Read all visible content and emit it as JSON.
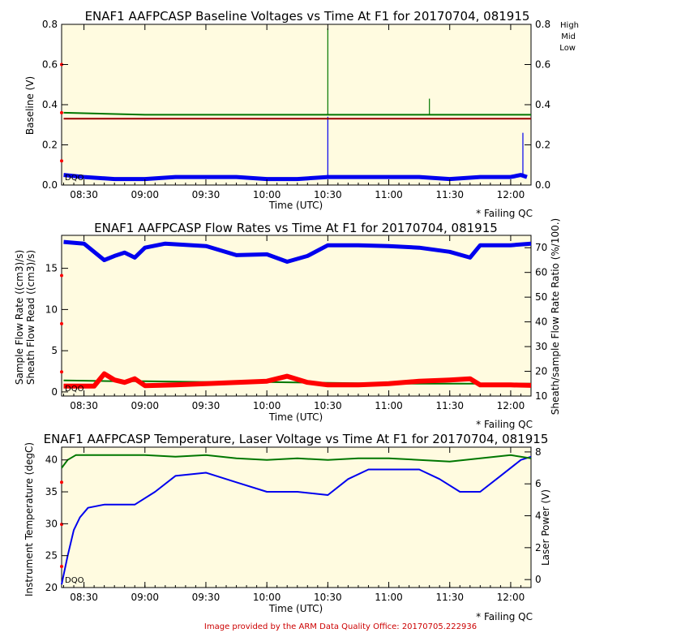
{
  "footer": "Image provided by the ARM Data Quality Office: 20170705.222936",
  "time_ticks": [
    "08:30",
    "09:00",
    "09:30",
    "10:00",
    "10:30",
    "11:00",
    "11:30",
    "12:00"
  ],
  "time_axis_label": "Time (UTC)",
  "failing_qc": "* Failing QC",
  "dqo": "DQO",
  "colors": {
    "high": "#0000ee",
    "mid": "#007700",
    "low": "#990000",
    "qc": "#ff0000",
    "background": "#fffbe0"
  },
  "chart_data": [
    {
      "type": "line",
      "title": "ENAF1 AAFPCASP Baseline Voltages vs Time At F1 for 20170704, 081915",
      "xlabel": "Time (UTC)",
      "ylabel": "Baseline (V)",
      "xlim": [
        "08:19",
        "12:10"
      ],
      "ylim": [
        0,
        0.8
      ],
      "y_ticks": [
        "0.0",
        "0.2",
        "0.4",
        "0.6",
        "0.8"
      ],
      "legend_placement": "right-top",
      "legend": [
        "High",
        "Mid",
        "Low"
      ],
      "series": [
        {
          "name": "High",
          "color": "#0000ee",
          "x": [
            "08:20",
            "08:30",
            "08:45",
            "09:00",
            "09:15",
            "09:30",
            "09:45",
            "10:00",
            "10:15",
            "10:30",
            "10:45",
            "11:00",
            "11:15",
            "11:30",
            "11:45",
            "12:00",
            "12:05",
            "12:08"
          ],
          "y": [
            0.05,
            0.04,
            0.03,
            0.03,
            0.04,
            0.04,
            0.04,
            0.03,
            0.03,
            0.04,
            0.04,
            0.04,
            0.04,
            0.03,
            0.04,
            0.04,
            0.05,
            0.04
          ],
          "spikes": [
            {
              "x": "10:30",
              "y": 0.34
            },
            {
              "x": "12:06",
              "y": 0.26
            }
          ]
        },
        {
          "name": "Mid",
          "color": "#007700",
          "x": [
            "08:20",
            "09:00",
            "10:00",
            "11:00",
            "12:00",
            "12:10"
          ],
          "y": [
            0.36,
            0.35,
            0.35,
            0.35,
            0.35,
            0.35
          ],
          "spikes": [
            {
              "x": "10:30",
              "y": 0.78
            },
            {
              "x": "11:20",
              "y": 0.43
            }
          ]
        },
        {
          "name": "Low",
          "color": "#990000",
          "x": [
            "08:20",
            "09:00",
            "10:00",
            "11:00",
            "12:00",
            "12:10"
          ],
          "y": [
            0.33,
            0.33,
            0.33,
            0.33,
            0.33,
            0.33
          ]
        }
      ]
    },
    {
      "type": "line",
      "title": "ENAF1 AAFPCASP Flow Rates vs Time At F1 for 20170704, 081915",
      "xlabel": "Time (UTC)",
      "ylabel_left": [
        "Sample Flow Rate ((cm3)/s)",
        "Sheath Flow Read ((cm3)/s)"
      ],
      "ylabel_right": "Sheath/sample Flow Rate Ratio (%/100.)",
      "xlim": [
        "08:19",
        "12:10"
      ],
      "ylim": [
        -0.5,
        19
      ],
      "ylim_right": [
        10,
        75
      ],
      "y_ticks": [
        "0",
        "5",
        "10",
        "15"
      ],
      "y_ticks_right": [
        "10",
        "20",
        "30",
        "40",
        "50",
        "60",
        "70"
      ],
      "series": [
        {
          "name": "Sheath Flow Read",
          "color": "#0000ee",
          "axis": "left",
          "x": [
            "08:20",
            "08:30",
            "08:40",
            "08:45",
            "08:50",
            "08:55",
            "09:00",
            "09:10",
            "09:30",
            "09:45",
            "10:00",
            "10:10",
            "10:20",
            "10:30",
            "10:45",
            "11:00",
            "11:15",
            "11:30",
            "11:40",
            "11:45",
            "12:00",
            "12:10"
          ],
          "y": [
            18.2,
            18.0,
            16.0,
            16.5,
            16.9,
            16.3,
            17.5,
            18.0,
            17.7,
            16.6,
            16.7,
            15.8,
            16.5,
            17.8,
            17.8,
            17.7,
            17.5,
            17.0,
            16.3,
            17.8,
            17.8,
            18.0
          ]
        },
        {
          "name": "Sample Flow Rate",
          "color": "#007700",
          "axis": "left",
          "x": [
            "08:20",
            "08:45",
            "09:00",
            "09:30",
            "10:00",
            "10:30",
            "11:00",
            "11:30",
            "12:00",
            "12:10"
          ],
          "y": [
            1.4,
            1.3,
            1.3,
            1.2,
            1.2,
            1.1,
            1.0,
            1.0,
            1.0,
            1.0
          ]
        },
        {
          "name": "Sheath/sample Flow Rate Ratio",
          "color": "#990000",
          "axis": "right",
          "x": [
            "08:20",
            "08:30",
            "08:35",
            "08:40",
            "08:45",
            "08:50",
            "08:55",
            "09:00",
            "09:15",
            "09:30",
            "09:45",
            "10:00",
            "10:10",
            "10:20",
            "10:30",
            "10:45",
            "11:00",
            "11:15",
            "11:30",
            "11:40",
            "11:45",
            "12:00",
            "12:10"
          ],
          "y": [
            14,
            14,
            14,
            19,
            16.5,
            15.5,
            17,
            14.2,
            14.5,
            15,
            15.5,
            16,
            18,
            15.5,
            14.5,
            14.5,
            15,
            16,
            16.5,
            17,
            14.5,
            14.5,
            14.3
          ]
        }
      ]
    },
    {
      "type": "line",
      "title": "ENAF1 AAFPCASP Temperature, Laser Voltage vs Time At F1 for 20170704, 081915",
      "xlabel": "Time (UTC)",
      "ylabel_left": "Instrument Temperature (degC)",
      "ylabel_right": "Laser Power (V)",
      "xlim": [
        "08:19",
        "12:10"
      ],
      "ylim": [
        20,
        42
      ],
      "ylim_right": [
        -0.5,
        8.3
      ],
      "y_ticks": [
        "20",
        "25",
        "30",
        "35",
        "40"
      ],
      "y_ticks_right": [
        "0",
        "2",
        "4",
        "6",
        "8"
      ],
      "series": [
        {
          "name": "Instrument Temperature",
          "color": "#0000ee",
          "axis": "left",
          "x": [
            "08:19",
            "08:22",
            "08:25",
            "08:28",
            "08:32",
            "08:40",
            "08:55",
            "09:05",
            "09:15",
            "09:30",
            "09:45",
            "10:00",
            "10:15",
            "10:30",
            "10:40",
            "10:50",
            "11:00",
            "11:15",
            "11:25",
            "11:35",
            "11:45",
            "11:55",
            "12:05",
            "12:10"
          ],
          "y": [
            20.5,
            25,
            29,
            31,
            32.5,
            33,
            33,
            35,
            37.5,
            38,
            36.5,
            35,
            35,
            34.5,
            37,
            38.5,
            38.5,
            38.5,
            37,
            35,
            35,
            37.5,
            40,
            40.5
          ]
        },
        {
          "name": "Laser Power",
          "color": "#007700",
          "axis": "right",
          "x": [
            "08:19",
            "08:22",
            "08:26",
            "08:35",
            "09:00",
            "09:15",
            "09:30",
            "09:45",
            "10:00",
            "10:15",
            "10:30",
            "10:45",
            "11:00",
            "11:15",
            "11:30",
            "11:45",
            "12:00",
            "12:10"
          ],
          "y": [
            7.0,
            7.5,
            7.8,
            7.8,
            7.8,
            7.7,
            7.8,
            7.6,
            7.5,
            7.6,
            7.5,
            7.6,
            7.6,
            7.5,
            7.4,
            7.6,
            7.8,
            7.6
          ]
        }
      ]
    }
  ]
}
